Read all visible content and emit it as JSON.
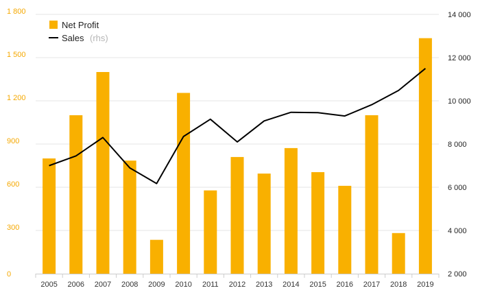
{
  "chart_data": {
    "type": "bar",
    "categories": [
      "2005",
      "2006",
      "2007",
      "2008",
      "2009",
      "2010",
      "2011",
      "2012",
      "2013",
      "2014",
      "2015",
      "2016",
      "2017",
      "2018",
      "2019"
    ],
    "series": [
      {
        "name": "Net Profit",
        "type": "bar",
        "axis": "left",
        "color": "#f9b000",
        "values": [
          800,
          1100,
          1400,
          785,
          235,
          1255,
          578,
          810,
          695,
          872,
          705,
          610,
          1100,
          282,
          1635
        ]
      },
      {
        "name": "Sales",
        "name_note": "(rhs)",
        "type": "line",
        "axis": "right",
        "color": "#000000",
        "values": [
          7000,
          7450,
          8300,
          6900,
          6170,
          8350,
          9150,
          8100,
          9070,
          9470,
          9450,
          9300,
          9820,
          10480,
          11500
        ]
      }
    ],
    "ylim_left": [
      0,
      1800
    ],
    "yticks_left": [
      0,
      300,
      600,
      900,
      1200,
      1500,
      1800
    ],
    "ytick_labels_left": [
      "0",
      "300",
      "600",
      "900",
      "1 200",
      "1 500",
      "1 800"
    ],
    "ylim_right": [
      2000,
      14000
    ],
    "yticks_right": [
      2000,
      4000,
      6000,
      8000,
      10000,
      12000,
      14000
    ],
    "ytick_labels_right": [
      "2 000",
      "4 000",
      "6 000",
      "8 000",
      "10 000",
      "12 000",
      "14 000"
    ],
    "grid": true,
    "legend_position": "top-left",
    "title": "",
    "xlabel": "",
    "ylabel": "",
    "left_axis_color": "#f5a800",
    "grid_color": "#e6e6e6"
  }
}
